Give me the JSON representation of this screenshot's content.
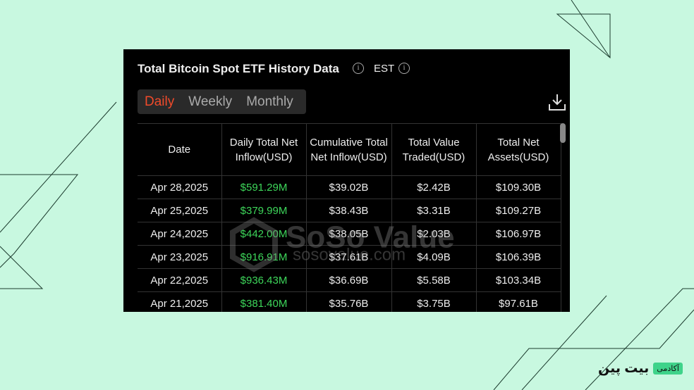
{
  "header": {
    "title": "Total Bitcoin Spot ETF History Data",
    "timezone": "EST"
  },
  "tabs": [
    "Daily",
    "Weekly",
    "Monthly"
  ],
  "table": {
    "columns": [
      "Date",
      "Daily Total Net Inflow(USD)",
      "Cumulative Total Net Inflow(USD)",
      "Total Value Traded(USD)",
      "Total Net Assets(USD)"
    ],
    "rows": [
      [
        "Apr 28,2025",
        "$591.29M",
        "$39.02B",
        "$2.42B",
        "$109.30B"
      ],
      [
        "Apr 25,2025",
        "$379.99M",
        "$38.43B",
        "$3.31B",
        "$109.27B"
      ],
      [
        "Apr 24,2025",
        "$442.00M",
        "$38.05B",
        "$2.03B",
        "$106.97B"
      ],
      [
        "Apr 23,2025",
        "$916.91M",
        "$37.61B",
        "$4.09B",
        "$106.39B"
      ],
      [
        "Apr 22,2025",
        "$936.43M",
        "$36.69B",
        "$5.58B",
        "$103.34B"
      ],
      [
        "Apr 21,2025",
        "$381.40M",
        "$35.76B",
        "$3.75B",
        "$97.61B"
      ]
    ]
  },
  "watermark": {
    "brand": "SoSo Value",
    "url": "sosovalue.com"
  },
  "logo": {
    "academy": "آکادمی",
    "brand": "بیت پین"
  }
}
